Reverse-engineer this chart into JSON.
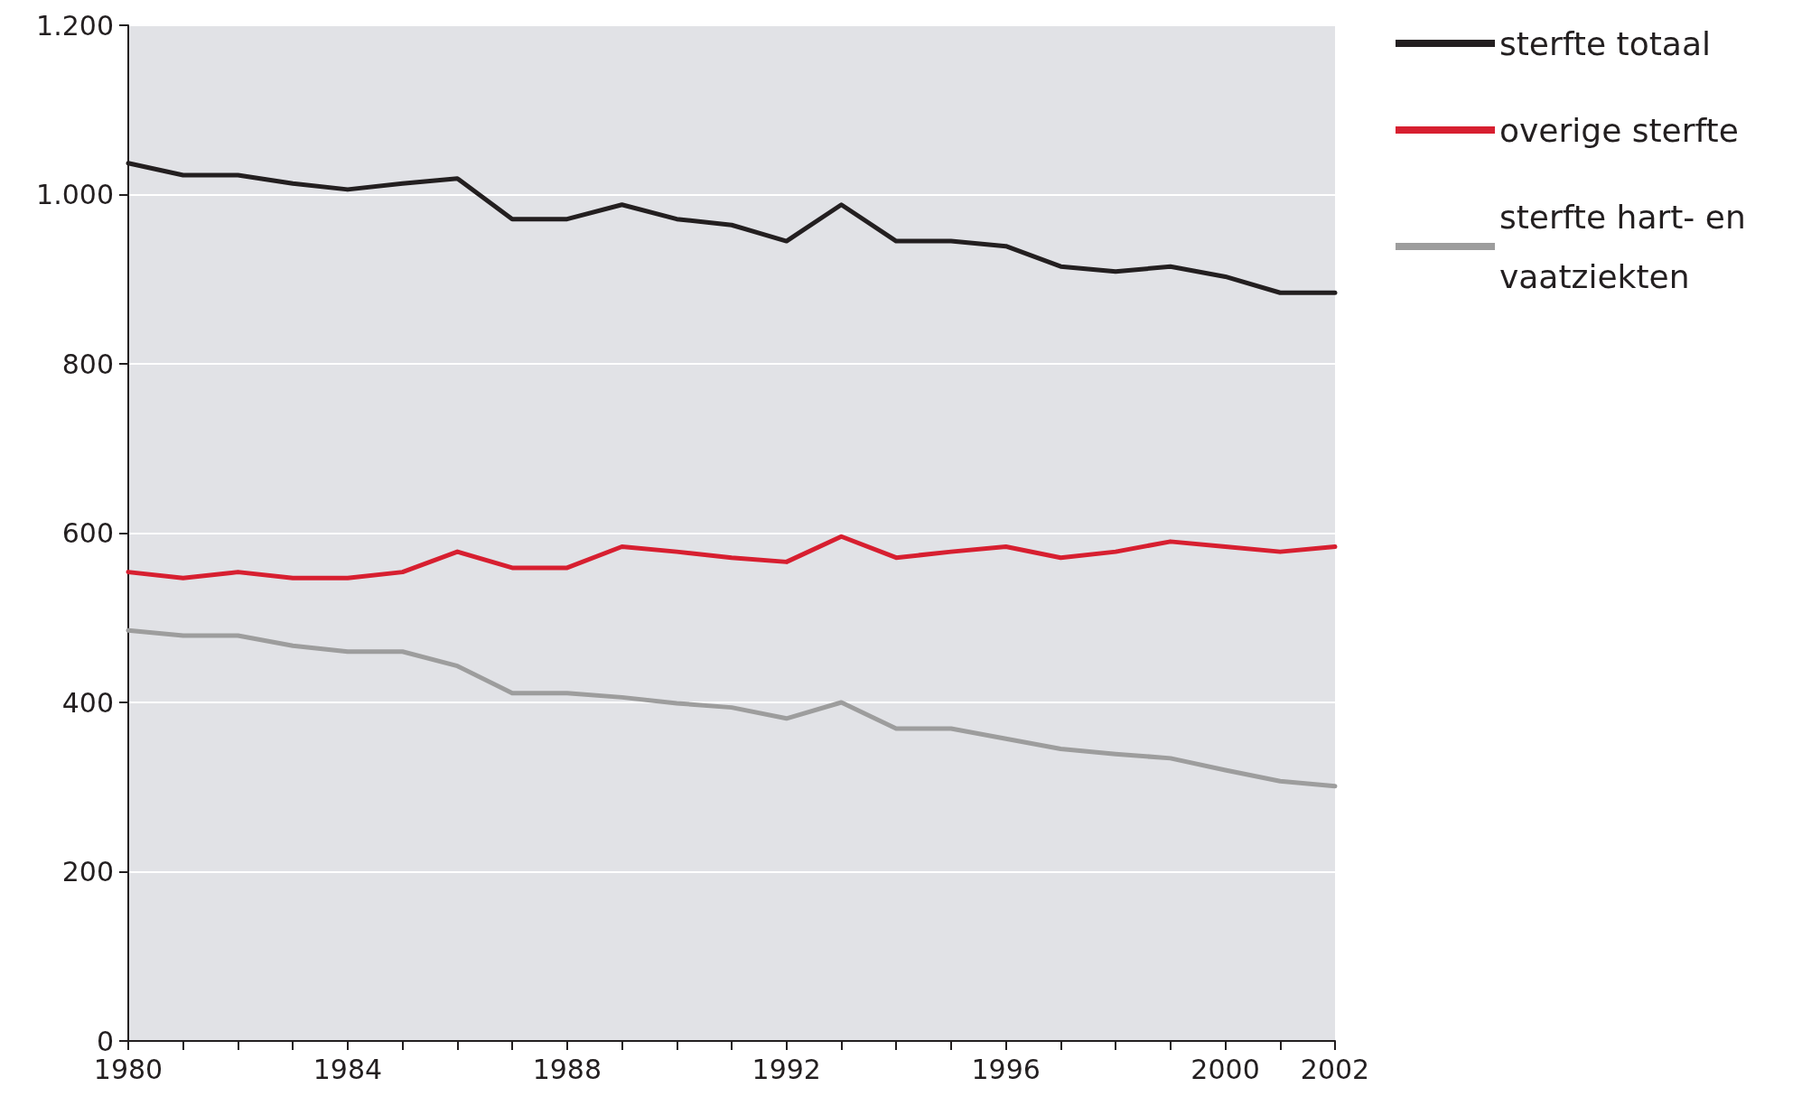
{
  "chart_data": {
    "type": "line",
    "x": [
      1980,
      1981,
      1982,
      1983,
      1984,
      1985,
      1986,
      1987,
      1988,
      1989,
      1990,
      1991,
      1992,
      1993,
      1994,
      1995,
      1996,
      1997,
      1998,
      1999,
      2000,
      2001,
      2002
    ],
    "series": [
      {
        "name": "sterfte totaal",
        "color": "#231f20",
        "values": [
          1037,
          1023,
          1023,
          1013,
          1006,
          1013,
          1019,
          971,
          971,
          988,
          971,
          964,
          945,
          988,
          945,
          945,
          939,
          915,
          909,
          915,
          903,
          884,
          884
        ]
      },
      {
        "name": "overige sterfte",
        "color": "#d71f30",
        "values": [
          554,
          547,
          554,
          547,
          547,
          554,
          578,
          559,
          559,
          584,
          578,
          571,
          566,
          596,
          571,
          578,
          584,
          571,
          578,
          590,
          584,
          578,
          584
        ]
      },
      {
        "name": "sterfte hart- en vaatziekten",
        "color": "#9d9d9d",
        "values": [
          485,
          479,
          479,
          467,
          460,
          460,
          443,
          411,
          411,
          406,
          399,
          394,
          381,
          400,
          369,
          369,
          357,
          345,
          339,
          334,
          320,
          307,
          301
        ]
      }
    ],
    "xlim": [
      1980,
      2002
    ],
    "xticks": [
      1980,
      {
        "value": 1981,
        "label": null
      },
      {
        "value": 1982,
        "label": null
      },
      {
        "value": 1983,
        "label": null
      },
      1984,
      {
        "value": 1985,
        "label": null
      },
      {
        "value": 1986,
        "label": null
      },
      {
        "value": 1987,
        "label": null
      },
      1988,
      {
        "value": 1989,
        "label": null
      },
      {
        "value": 1990,
        "label": null
      },
      {
        "value": 1991,
        "label": null
      },
      1992,
      {
        "value": 1993,
        "label": null
      },
      {
        "value": 1994,
        "label": null
      },
      {
        "value": 1995,
        "label": null
      },
      1996,
      {
        "value": 1997,
        "label": null
      },
      {
        "value": 1998,
        "label": null
      },
      {
        "value": 1999,
        "label": null
      },
      2000,
      {
        "value": 2001,
        "label": null
      },
      2002
    ],
    "ylim": [
      0,
      1200
    ],
    "yticks": [
      0,
      200,
      400,
      600,
      800,
      {
        "value": 1000,
        "label": "1.000"
      },
      {
        "value": 1200,
        "label": "1.200"
      }
    ],
    "grid": "y",
    "legend": "top right",
    "marker": "none",
    "line_style": "solid"
  }
}
